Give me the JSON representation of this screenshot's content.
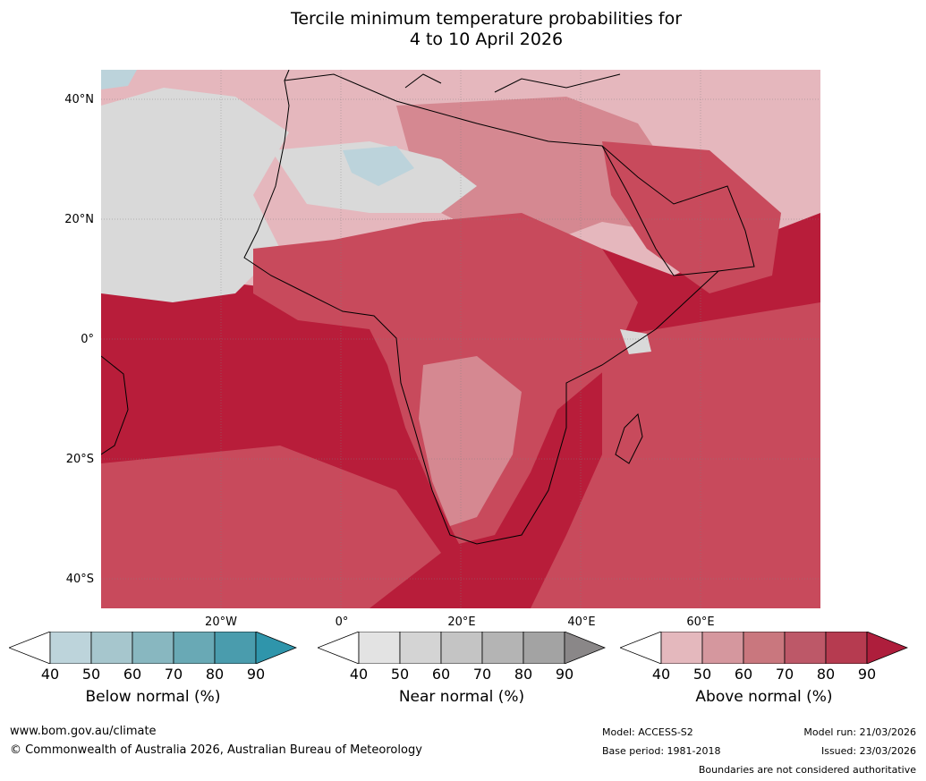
{
  "title": {
    "line1": "Tercile minimum temperature probabilities for",
    "line2": "4 to 10 April 2026"
  },
  "map": {
    "lat_labels": [
      "40°N",
      "20°N",
      "0°",
      "20°S",
      "40°S"
    ],
    "lon_labels": [
      "20°W",
      "0°",
      "20°E",
      "40°E",
      "60°E"
    ],
    "colors": {
      "above_dark": "#b81d3a",
      "above_mid": "#c84a5c",
      "above_light": "#d58891",
      "above_pale": "#e5b7bd",
      "near": "#d9d9d9",
      "below": "#bcd3db",
      "border": "#7f7f7f",
      "coast": "#000000"
    }
  },
  "colorbars": [
    {
      "label": "Below normal (%)",
      "ticks": [
        "40",
        "50",
        "60",
        "70",
        "80",
        "90"
      ],
      "colors": [
        "#bdd4db",
        "#a6c6cd",
        "#88b7c0",
        "#69a9b5",
        "#4a9cad",
        "#2f95ab"
      ]
    },
    {
      "label": "Near normal (%)",
      "ticks": [
        "40",
        "50",
        "60",
        "70",
        "80",
        "90"
      ],
      "colors": [
        "#e3e3e3",
        "#d4d4d4",
        "#c4c4c4",
        "#b4b4b4",
        "#a3a3a3",
        "#8a8788"
      ]
    },
    {
      "label": "Above normal (%)",
      "ticks": [
        "40",
        "50",
        "60",
        "70",
        "80",
        "90"
      ],
      "colors": [
        "#e4b8bd",
        "#d5979e",
        "#c9777e",
        "#bd5868",
        "#b63b50",
        "#ae1e3c"
      ]
    }
  ],
  "footer": {
    "url": "www.bom.gov.au/climate",
    "copyright": "© Commonwealth of Australia 2026, Australian Bureau of Meteorology",
    "model": "Model: ACCESS-S2",
    "base_period": "Base period: 1981-2018",
    "model_run": "Model run: 21/03/2026",
    "issued": "Issued: 23/03/2026",
    "disclaimer": "Boundaries are not considered authoritative"
  }
}
